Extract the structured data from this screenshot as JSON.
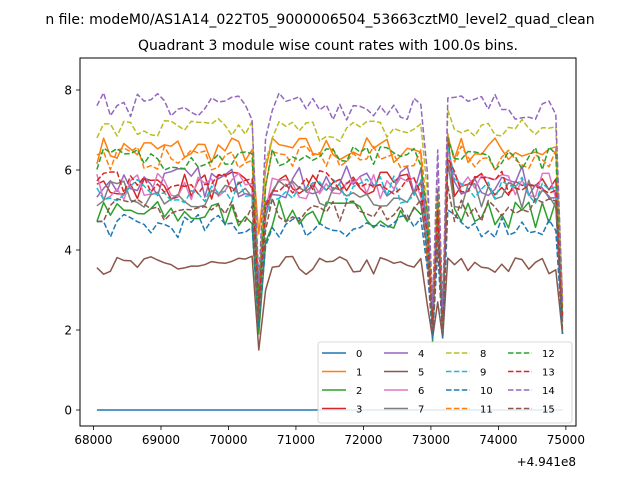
{
  "figure": {
    "suptitle": "n file: modeM0/AS1A14_022T05_9000006504_53663cztM0_level2_quad_clean",
    "title": "Quadrant 3 module wise count rates with 100.0s bins.",
    "offset_label": "+4.941e8"
  },
  "chart_data": {
    "type": "line",
    "title": "Quadrant 3 module wise count rates with 100.0s bins.",
    "xlabel": "",
    "ylabel": "",
    "xlim": [
      67800,
      75150
    ],
    "ylim": [
      -0.4,
      8.8
    ],
    "x_offset": 494100000,
    "xticks": [
      68000,
      69000,
      70000,
      71000,
      72000,
      73000,
      74000,
      75000
    ],
    "yticks": [
      0,
      2,
      4,
      6,
      8
    ],
    "grid": false,
    "legend": {
      "placement": "lower-right",
      "columns": 4
    },
    "segments": [
      {
        "x_start": 68050,
        "x_end": 70350
      },
      {
        "x_start": 70650,
        "x_end": 72850
      },
      {
        "x_start": 73350,
        "x_end": 74850
      }
    ],
    "gaps": [
      {
        "from": 70350,
        "to": 70650,
        "points": [
          [
            70450,
            0.0
          ],
          [
            70550,
            0.0
          ]
        ]
      },
      {
        "from": 72850,
        "to": 73350,
        "points": [
          [
            72950,
            0.0
          ],
          [
            73025,
            0.0
          ],
          [
            73100,
            0.0
          ],
          [
            73175,
            0.0
          ],
          [
            73250,
            0.0
          ]
        ]
      },
      {
        "from": 74850,
        "to": 75000,
        "points": [
          [
            74950,
            0.0
          ]
        ]
      }
    ],
    "series": [
      {
        "name": "0",
        "color": "#1f77b4",
        "dash": "solid",
        "base": 0.0,
        "amp": 0.0,
        "gap_values": [
          0,
          0,
          0,
          0,
          0,
          0,
          0,
          0
        ]
      },
      {
        "name": "1",
        "color": "#ff7f0e",
        "dash": "solid",
        "base": 6.5,
        "amp": 0.35,
        "gap_values": [
          4.4,
          6.0,
          3.6,
          2.9,
          4.6,
          2.1,
          6.8,
          2.8
        ]
      },
      {
        "name": "2",
        "color": "#2ca02c",
        "dash": "solid",
        "base": 4.9,
        "amp": 0.35,
        "gap_values": [
          1.9,
          4.2,
          5.1,
          1.7,
          5.3,
          2.0,
          6.9,
          1.9
        ]
      },
      {
        "name": "3",
        "color": "#d62728",
        "dash": "solid",
        "base": 5.6,
        "amp": 0.35,
        "gap_values": [
          2.6,
          5.0,
          4.3,
          2.2,
          4.9,
          2.0,
          6.8,
          2.3
        ]
      },
      {
        "name": "4",
        "color": "#9467bd",
        "dash": "solid",
        "base": 5.7,
        "amp": 0.4,
        "gap_values": [
          2.7,
          5.2,
          4.5,
          2.3,
          5.0,
          2.0,
          6.2,
          2.4
        ]
      },
      {
        "name": "5",
        "color": "#8c564b",
        "dash": "solid",
        "base": 3.6,
        "amp": 0.25,
        "gap_values": [
          1.5,
          3.0,
          2.6,
          1.8,
          2.7,
          1.8,
          3.8,
          1.9
        ]
      },
      {
        "name": "6",
        "color": "#e377c2",
        "dash": "solid",
        "base": 5.6,
        "amp": 0.35,
        "gap_values": [
          2.5,
          5.0,
          4.3,
          2.2,
          4.9,
          2.0,
          6.5,
          2.3
        ]
      },
      {
        "name": "7",
        "color": "#7f7f7f",
        "dash": "solid",
        "base": 5.4,
        "amp": 0.35,
        "gap_values": [
          2.4,
          4.8,
          4.1,
          2.1,
          4.7,
          2.0,
          6.2,
          2.2
        ]
      },
      {
        "name": "8",
        "color": "#bcbd22",
        "dash": "dashed",
        "base": 7.0,
        "amp": 0.3,
        "gap_values": [
          3.0,
          6.2,
          5.4,
          2.5,
          6.0,
          2.4,
          7.5,
          2.6
        ]
      },
      {
        "name": "9",
        "color": "#17becf",
        "dash": "dashed",
        "base": 5.5,
        "amp": 0.35,
        "gap_values": [
          2.5,
          4.9,
          4.2,
          2.1,
          4.8,
          2.0,
          6.6,
          2.2
        ]
      },
      {
        "name": "10",
        "color": "#1f77b4",
        "dash": "dashed",
        "base": 4.6,
        "amp": 0.3,
        "gap_values": [
          2.1,
          4.1,
          3.5,
          1.8,
          4.0,
          1.8,
          5.0,
          1.9
        ]
      },
      {
        "name": "11",
        "color": "#ff7f0e",
        "dash": "dashed",
        "base": 6.3,
        "amp": 0.3,
        "gap_values": [
          2.8,
          5.6,
          4.9,
          2.3,
          5.5,
          2.2,
          6.9,
          2.4
        ]
      },
      {
        "name": "12",
        "color": "#2ca02c",
        "dash": "dashed",
        "base": 6.3,
        "amp": 0.3,
        "gap_values": [
          2.8,
          5.6,
          4.9,
          2.3,
          5.5,
          2.2,
          6.8,
          2.4
        ]
      },
      {
        "name": "13",
        "color": "#d62728",
        "dash": "dashed",
        "base": 5.7,
        "amp": 0.3,
        "gap_values": [
          2.6,
          5.1,
          4.4,
          2.2,
          5.0,
          2.0,
          6.3,
          2.3
        ]
      },
      {
        "name": "14",
        "color": "#9467bd",
        "dash": "dashed",
        "base": 7.6,
        "amp": 0.35,
        "gap_values": [
          3.2,
          6.8,
          5.9,
          2.6,
          6.5,
          2.5,
          7.8,
          2.7
        ]
      },
      {
        "name": "15",
        "color": "#8c564b",
        "dash": "dashed",
        "base": 5.0,
        "amp": 0.3,
        "gap_values": [
          2.3,
          4.5,
          3.8,
          2.0,
          4.4,
          1.9,
          5.6,
          2.0
        ]
      }
    ]
  }
}
